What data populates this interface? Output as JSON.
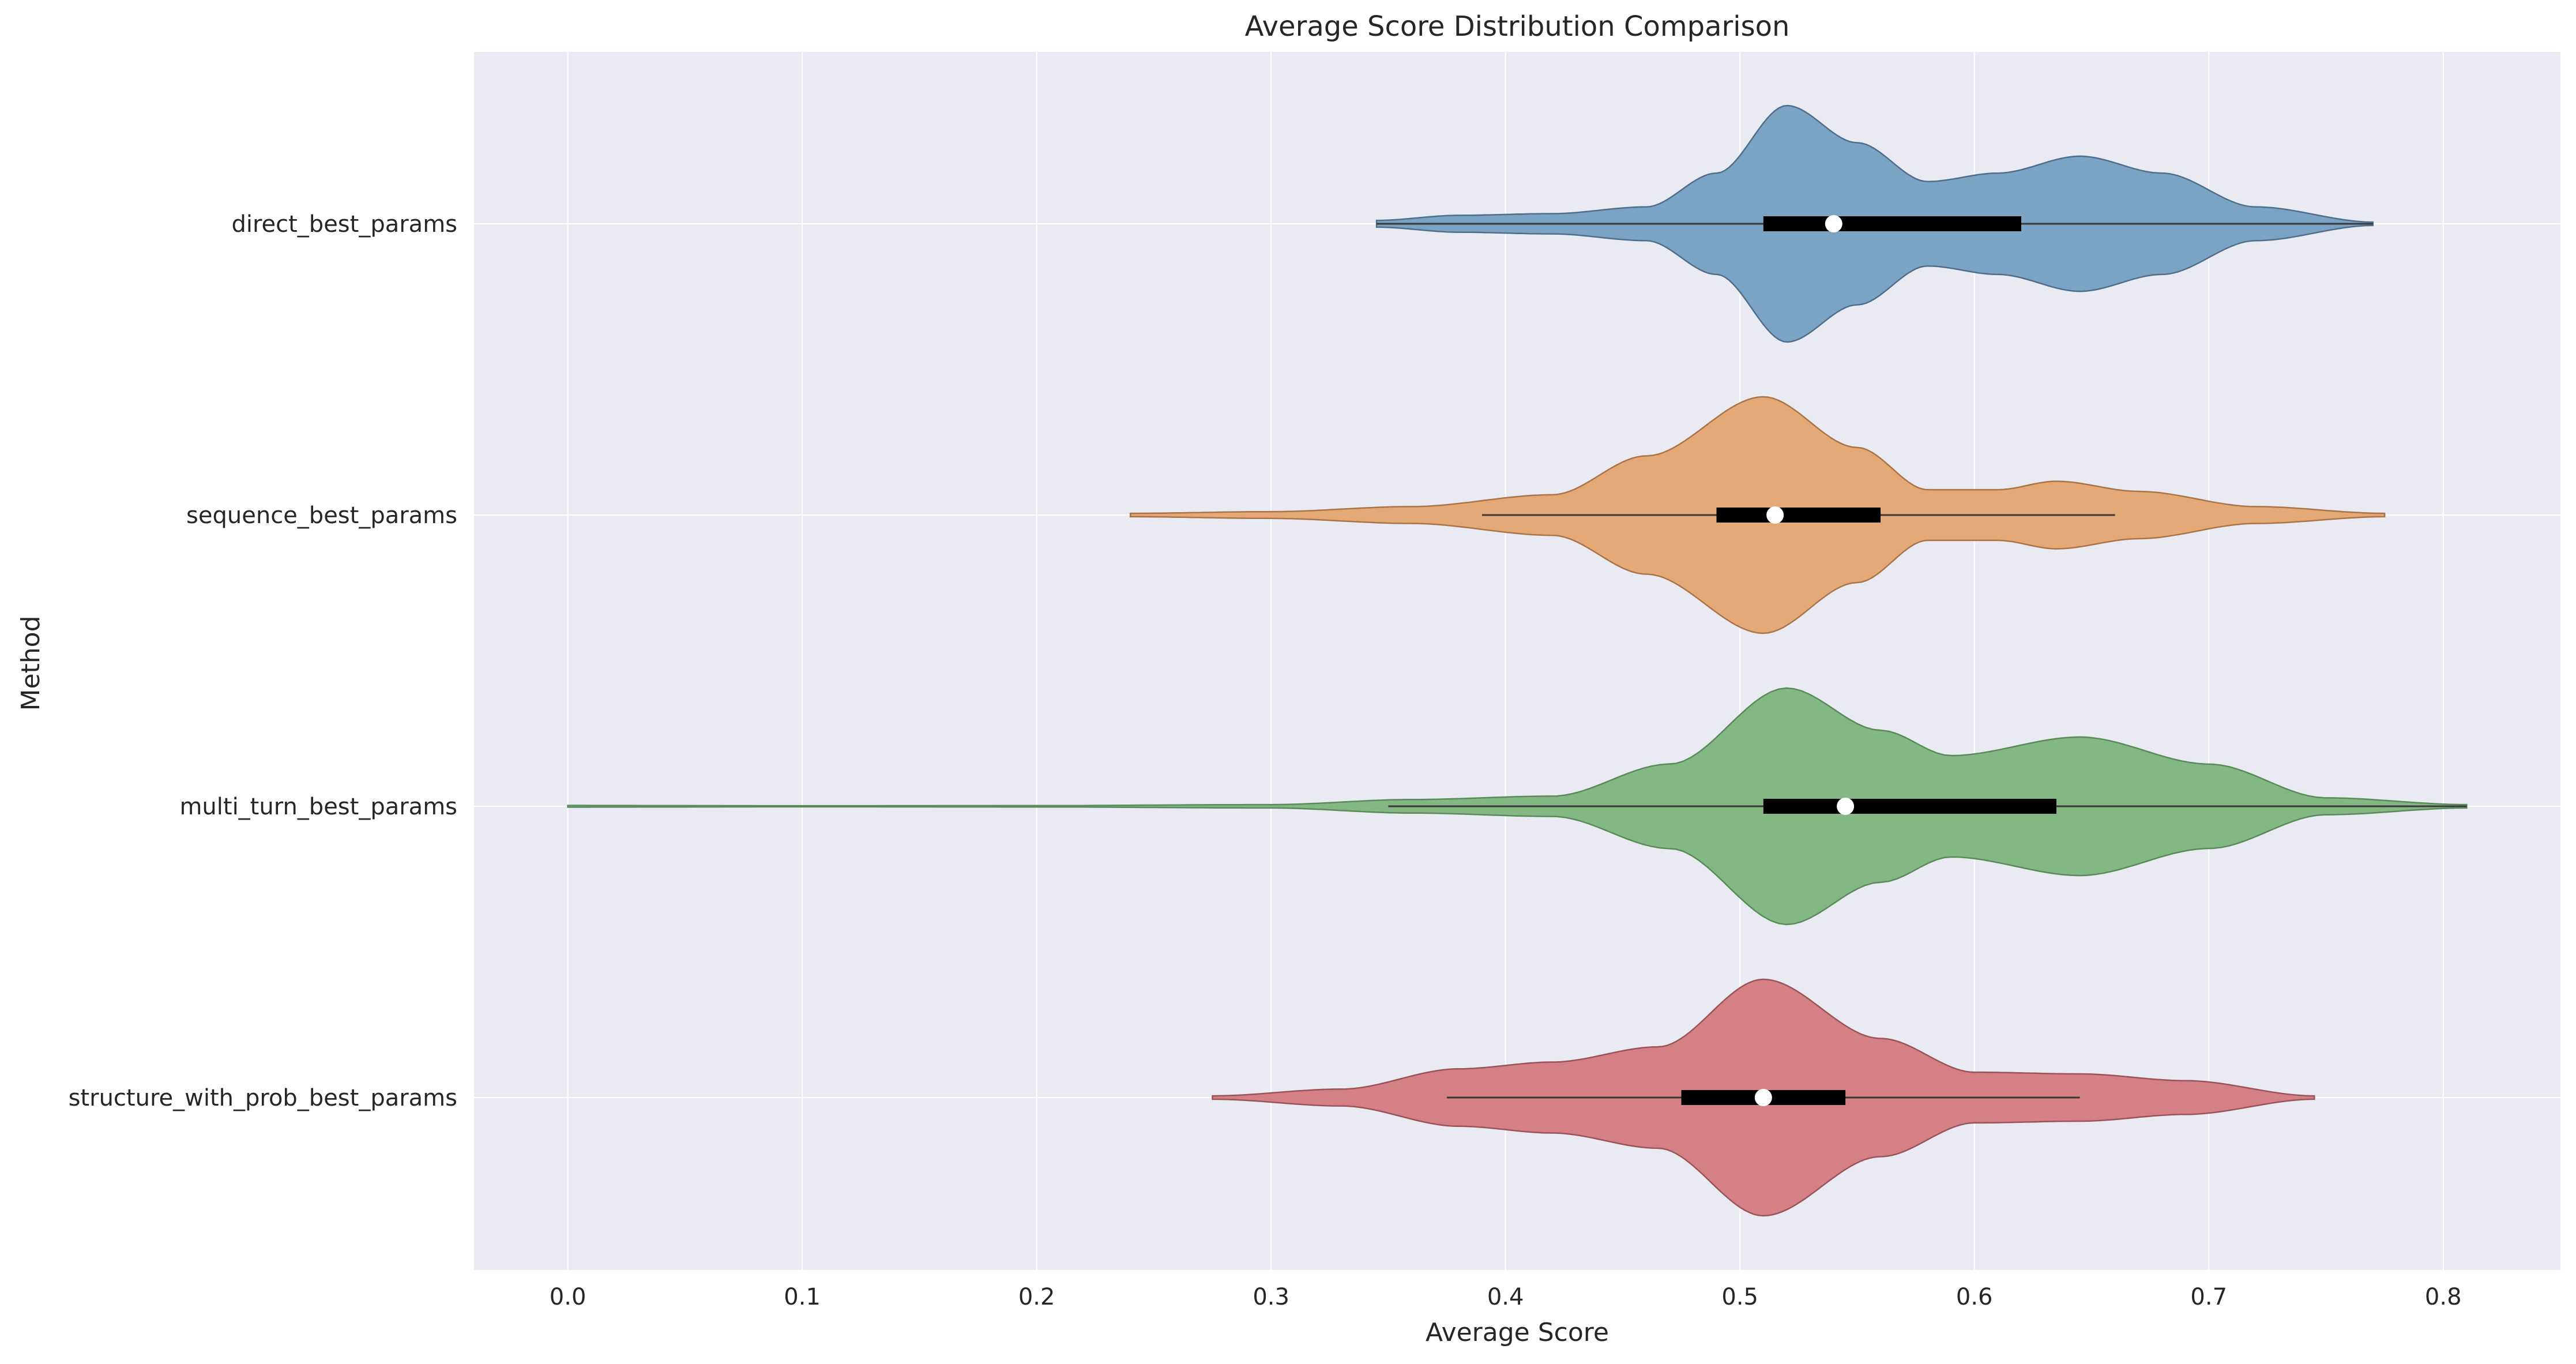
{
  "chart_data": {
    "type": "violin",
    "orientation": "horizontal",
    "title": "Average Score Distribution Comparison",
    "xlabel": "Average Score",
    "ylabel": "Method",
    "xlim": [
      -0.04,
      0.85
    ],
    "xticks": [
      0.0,
      0.1,
      0.2,
      0.3,
      0.4,
      0.5,
      0.6,
      0.7,
      0.8
    ],
    "xtick_labels": [
      "0.0",
      "0.1",
      "0.2",
      "0.3",
      "0.4",
      "0.5",
      "0.6",
      "0.7",
      "0.8"
    ],
    "grid": true,
    "colors": {
      "background": "#EAEAF2",
      "grid": "#FFFFFF",
      "text": "#262626"
    },
    "series": [
      {
        "name": "direct_best_params",
        "color": "#7BA3C4",
        "stroke": "#4E6E8C",
        "min": 0.345,
        "max": 0.77,
        "q1": 0.51,
        "median": 0.54,
        "q3": 0.62,
        "whisker_low": 0.345,
        "whisker_high": 0.77,
        "density": [
          [
            0.345,
            0.02
          ],
          [
            0.38,
            0.05
          ],
          [
            0.42,
            0.06
          ],
          [
            0.46,
            0.1
          ],
          [
            0.49,
            0.3
          ],
          [
            0.52,
            0.7
          ],
          [
            0.55,
            0.48
          ],
          [
            0.58,
            0.25
          ],
          [
            0.61,
            0.3
          ],
          [
            0.645,
            0.4
          ],
          [
            0.68,
            0.3
          ],
          [
            0.72,
            0.1
          ],
          [
            0.77,
            0.01
          ]
        ]
      },
      {
        "name": "sequence_best_params",
        "color": "#E5A877",
        "stroke": "#A87448",
        "min": 0.24,
        "max": 0.775,
        "q1": 0.49,
        "median": 0.515,
        "q3": 0.56,
        "whisker_low": 0.39,
        "whisker_high": 0.66,
        "density": [
          [
            0.24,
            0.01
          ],
          [
            0.3,
            0.02
          ],
          [
            0.36,
            0.05
          ],
          [
            0.42,
            0.12
          ],
          [
            0.46,
            0.35
          ],
          [
            0.51,
            0.7
          ],
          [
            0.55,
            0.4
          ],
          [
            0.58,
            0.15
          ],
          [
            0.61,
            0.15
          ],
          [
            0.635,
            0.2
          ],
          [
            0.67,
            0.14
          ],
          [
            0.72,
            0.05
          ],
          [
            0.775,
            0.01
          ]
        ]
      },
      {
        "name": "multi_turn_best_params",
        "color": "#83B783",
        "stroke": "#5A8A5A",
        "min": 0.0,
        "max": 0.81,
        "q1": 0.51,
        "median": 0.545,
        "q3": 0.635,
        "whisker_low": 0.35,
        "whisker_high": 0.81,
        "density": [
          [
            0.0,
            0.005
          ],
          [
            0.1,
            0.003
          ],
          [
            0.2,
            0.004
          ],
          [
            0.3,
            0.01
          ],
          [
            0.36,
            0.04
          ],
          [
            0.42,
            0.06
          ],
          [
            0.47,
            0.25
          ],
          [
            0.52,
            0.7
          ],
          [
            0.56,
            0.45
          ],
          [
            0.59,
            0.3
          ],
          [
            0.645,
            0.41
          ],
          [
            0.7,
            0.25
          ],
          [
            0.75,
            0.05
          ],
          [
            0.81,
            0.01
          ]
        ]
      },
      {
        "name": "structure_with_prob_best_params",
        "color": "#D48084",
        "stroke": "#9A5459",
        "min": 0.275,
        "max": 0.745,
        "q1": 0.475,
        "median": 0.51,
        "q3": 0.545,
        "whisker_low": 0.375,
        "whisker_high": 0.645,
        "density": [
          [
            0.275,
            0.01
          ],
          [
            0.33,
            0.05
          ],
          [
            0.38,
            0.17
          ],
          [
            0.42,
            0.21
          ],
          [
            0.465,
            0.3
          ],
          [
            0.51,
            0.7
          ],
          [
            0.56,
            0.35
          ],
          [
            0.6,
            0.15
          ],
          [
            0.645,
            0.14
          ],
          [
            0.69,
            0.1
          ],
          [
            0.745,
            0.01
          ]
        ]
      }
    ]
  }
}
